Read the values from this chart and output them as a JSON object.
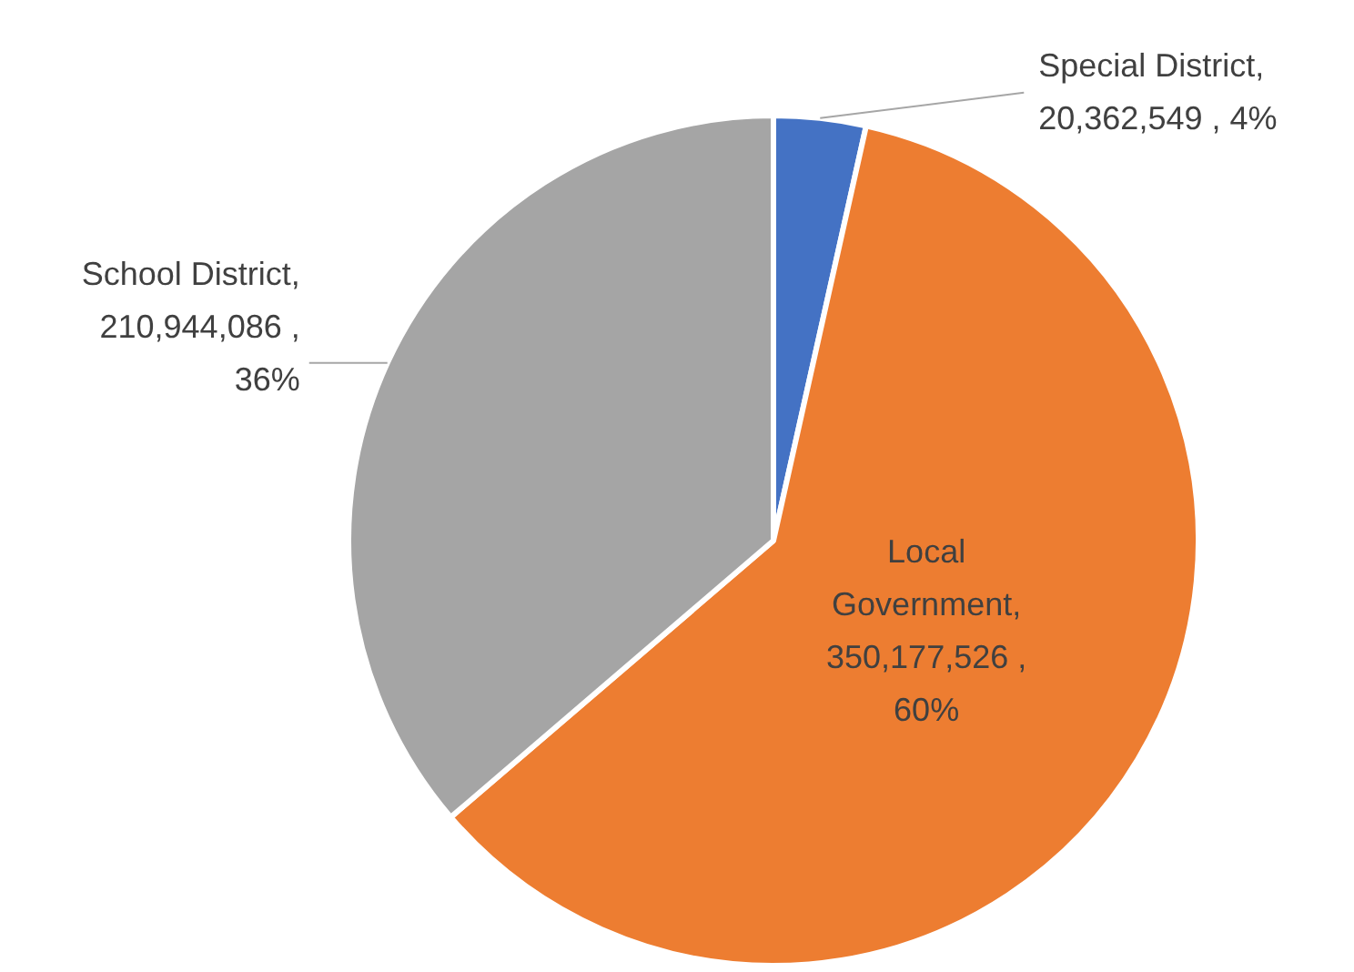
{
  "chart_data": {
    "type": "pie",
    "categories": [
      "Special District",
      "Local Government",
      "School District"
    ],
    "values": [
      20362549,
      350177526,
      210944086
    ],
    "colors": [
      "#4472c4",
      "#ed7d31",
      "#a5a5a5"
    ],
    "value_labels": [
      ", 20,362,549 , 4%",
      ", 350,177,526 , 60%",
      ", 210,944,086 , 36%"
    ],
    "legend": false
  }
}
